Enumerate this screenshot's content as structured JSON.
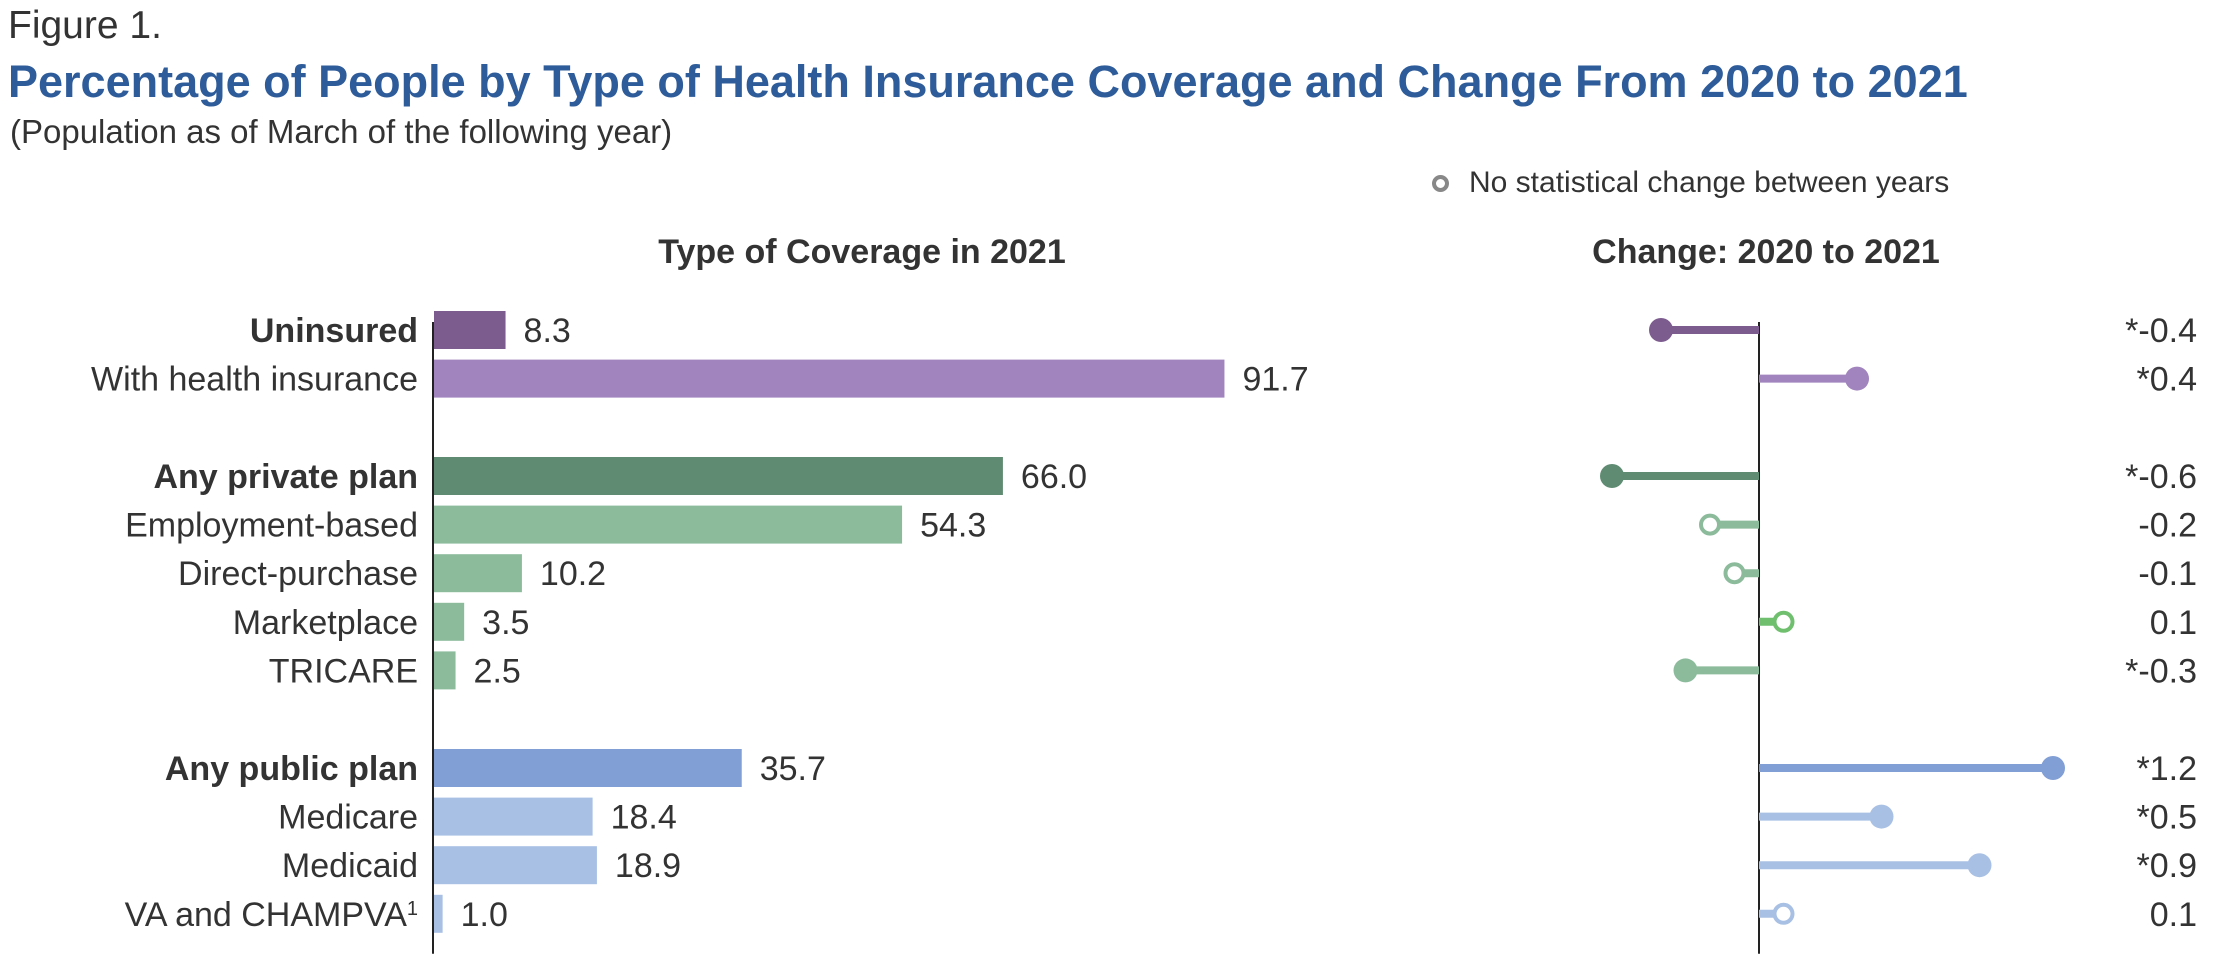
{
  "figure_label": "Figure 1.",
  "title": "Percentage of People by Type of Health Insurance Coverage and Change From 2020 to 2021",
  "subtitle": "(Population as of March of the following year)",
  "legend": {
    "label": "No statistical change between years",
    "marker_color": "#888888"
  },
  "chart_data": [
    {
      "type": "bar",
      "orientation": "horizontal",
      "panel_title": "Type of Coverage in 2021",
      "categories": [
        "Uninsured",
        "With health insurance",
        "Any private plan",
        "Employment-based",
        "Direct-purchase",
        "Marketplace",
        "TRICARE",
        "Any public plan",
        "Medicare",
        "Medicaid",
        "VA and CHAMPVA"
      ],
      "category_superscripts": [
        "",
        "",
        "",
        "",
        "",
        "",
        "",
        "",
        "",
        "",
        "1"
      ],
      "bold": [
        true,
        false,
        true,
        false,
        false,
        false,
        false,
        true,
        false,
        false,
        false
      ],
      "groups": [
        0,
        0,
        1,
        1,
        1,
        1,
        1,
        2,
        2,
        2,
        2
      ],
      "values": [
        8.3,
        91.7,
        66.0,
        54.3,
        10.2,
        3.5,
        2.5,
        35.7,
        18.4,
        18.9,
        1.0
      ],
      "value_labels": [
        "8.3",
        "91.7",
        "66.0",
        "54.3",
        "10.2",
        "3.5",
        "2.5",
        "35.7",
        "18.4",
        "18.9",
        "1.0"
      ],
      "colors": [
        "#7c5b8e",
        "#a184bd",
        "#5f8b72",
        "#8cbb9c",
        "#8cbb9c",
        "#8cbb9c",
        "#8cbb9c",
        "#819ed5",
        "#a8c0e4",
        "#a8c0e4",
        "#a8c0e4"
      ],
      "xlim": [
        0,
        100
      ],
      "grid": false
    },
    {
      "type": "lollipop",
      "panel_title": "Change: 2020 to 2021",
      "categories": [
        "Uninsured",
        "With health insurance",
        "Any private plan",
        "Employment-based",
        "Direct-purchase",
        "Marketplace",
        "TRICARE",
        "Any public plan",
        "Medicare",
        "Medicaid",
        "VA and CHAMPVA"
      ],
      "values": [
        -0.4,
        0.4,
        -0.6,
        -0.2,
        -0.1,
        0.1,
        -0.3,
        1.2,
        0.5,
        0.9,
        0.1
      ],
      "value_labels": [
        "*-0.4",
        "*0.4",
        "*-0.6",
        "-0.2",
        "-0.1",
        "0.1",
        "*-0.3",
        "*1.2",
        "*0.5",
        "*0.9",
        "0.1"
      ],
      "no_statistical_change": [
        false,
        false,
        false,
        true,
        true,
        true,
        false,
        false,
        false,
        false,
        true
      ],
      "colors": [
        "#7c5b8e",
        "#a184bd",
        "#5f8b72",
        "#8cbb9c",
        "#8cbb9c",
        "#6fbf6f",
        "#8cbb9c",
        "#819ed5",
        "#a8c0e4",
        "#a8c0e4",
        "#a8c0e4"
      ],
      "xlim": [
        -0.6,
        1.2
      ],
      "grid": false
    }
  ]
}
